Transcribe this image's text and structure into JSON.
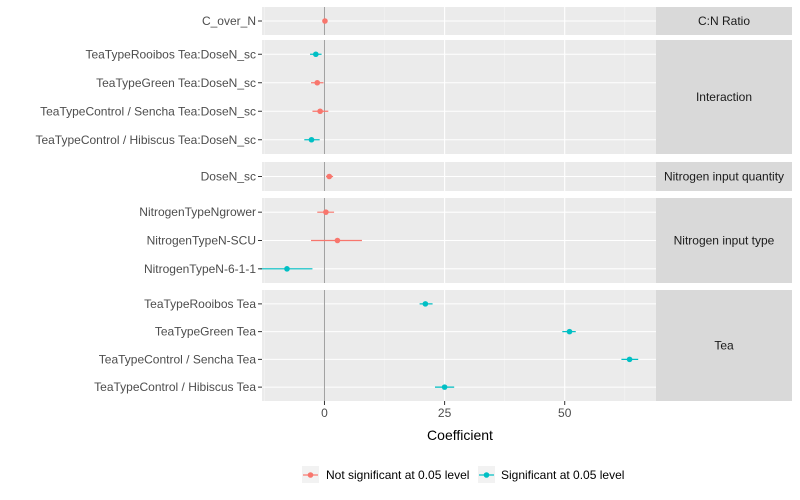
{
  "chart_data": {
    "type": "scatter",
    "subtype": "coefficient-dot-with-error-bars",
    "xlabel": "Coefficient",
    "x_ticks": [
      0,
      25,
      50
    ],
    "xlim": [
      -13,
      69
    ],
    "grid": true,
    "legend_position": "bottom",
    "colors": {
      "Not significant at 0.05 level": "#F8766D",
      "Significant at 0.05 level": "#00BFC4"
    },
    "series": [
      {
        "name": "Not significant at 0.05 level",
        "color": "#F8766D"
      },
      {
        "name": "Significant at 0.05 level",
        "color": "#00BFC4"
      }
    ],
    "panels": [
      {
        "strip": "C:N Ratio",
        "rows": [
          {
            "term": "C_over_N",
            "estimate": 0.1,
            "lo": -0.3,
            "hi": 0.5,
            "significant": false
          }
        ]
      },
      {
        "strip": "Interaction",
        "rows": [
          {
            "term": "TeaTypeRooibos Tea:DoseN_sc",
            "estimate": -1.8,
            "lo": -3.0,
            "hi": -0.6,
            "significant": true
          },
          {
            "term": "TeaTypeGreen Tea:DoseN_sc",
            "estimate": -1.5,
            "lo": -2.8,
            "hi": -0.2,
            "significant": false
          },
          {
            "term": "TeaTypeControl / Sencha Tea:DoseN_sc",
            "estimate": -0.9,
            "lo": -2.5,
            "hi": 0.8,
            "significant": false
          },
          {
            "term": "TeaTypeControl / Hibiscus Tea:DoseN_sc",
            "estimate": -2.7,
            "lo": -4.2,
            "hi": -1.0,
            "significant": true
          }
        ]
      },
      {
        "strip": "Nitrogen input quantity",
        "rows": [
          {
            "term": "DoseN_sc",
            "estimate": 1.0,
            "lo": 0.3,
            "hi": 1.8,
            "significant": false
          }
        ]
      },
      {
        "strip": "Nitrogen input type",
        "rows": [
          {
            "term": "NitrogenTypeNgrower",
            "estimate": 0.3,
            "lo": -1.5,
            "hi": 2.0,
            "significant": false
          },
          {
            "term": "NitrogenTypeN-SCU",
            "estimate": 2.7,
            "lo": -2.8,
            "hi": 7.8,
            "significant": false
          },
          {
            "term": "NitrogenTypeN-6-1-1",
            "estimate": -7.8,
            "lo": -13.5,
            "hi": -2.5,
            "significant": true
          }
        ]
      },
      {
        "strip": "Tea",
        "rows": [
          {
            "term": "TeaTypeRooibos Tea",
            "estimate": 21.0,
            "lo": 19.8,
            "hi": 22.5,
            "significant": true
          },
          {
            "term": "TeaTypeGreen Tea",
            "estimate": 51.0,
            "lo": 49.5,
            "hi": 52.3,
            "significant": true
          },
          {
            "term": "TeaTypeControl / Sencha Tea",
            "estimate": 63.5,
            "lo": 61.8,
            "hi": 65.3,
            "significant": true
          },
          {
            "term": "TeaTypeControl / Hibiscus Tea",
            "estimate": 25.0,
            "lo": 23.0,
            "hi": 27.0,
            "significant": true
          }
        ]
      }
    ]
  }
}
